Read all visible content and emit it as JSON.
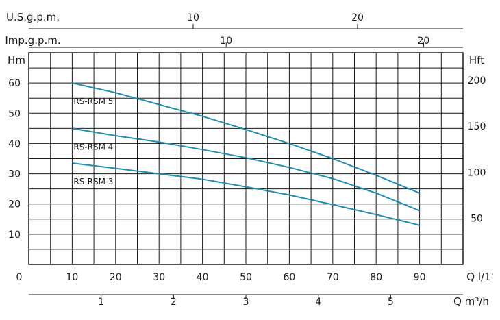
{
  "chart_data": {
    "type": "line",
    "series_color": "#1f8fb0",
    "x": {
      "label": "Q l/1'",
      "ticks": [
        0,
        10,
        20,
        30,
        40,
        50,
        60,
        70,
        80,
        90
      ],
      "lim": [
        0,
        100
      ]
    },
    "y_left": {
      "label": "Hm",
      "ticks": [
        10,
        20,
        30,
        40,
        50,
        60
      ],
      "lim": [
        0,
        70
      ]
    },
    "y_right": {
      "label": "Hft",
      "ticks": [
        50,
        100,
        150,
        200
      ]
    },
    "top_axis_usgpm": {
      "label": "U.S.g.p.m.",
      "ticks": [
        {
          "value": 10,
          "label": "10"
        },
        {
          "value": 20,
          "label": "20"
        }
      ]
    },
    "top_axis_impgpm": {
      "label": "Imp.g.p.m.",
      "ticks": [
        {
          "value": 10,
          "label": "10"
        },
        {
          "value": 20,
          "label": "20"
        }
      ]
    },
    "bottom_axis_m3h": {
      "label": "Q m³/h",
      "ticks": [
        {
          "value": 1,
          "label": "1"
        },
        {
          "value": 2,
          "label": "2"
        },
        {
          "value": 3,
          "label": "3"
        },
        {
          "value": 4,
          "label": "4"
        },
        {
          "value": 5,
          "label": "5"
        }
      ]
    },
    "grid": true,
    "series": [
      {
        "name": "RS-RSM 5",
        "x": [
          10,
          20,
          30,
          40,
          50,
          60,
          70,
          80,
          90
        ],
        "y": [
          60,
          56.8,
          52.9,
          49,
          44.6,
          40,
          35,
          29.5,
          23.6
        ]
      },
      {
        "name": "RS-RSM 4",
        "x": [
          10,
          20,
          30,
          40,
          50,
          60,
          70,
          80,
          90
        ],
        "y": [
          45,
          42.6,
          40.5,
          38,
          35.3,
          32.1,
          28.4,
          23.6,
          17.8
        ]
      },
      {
        "name": "RS-RSM 3",
        "x": [
          10,
          20,
          30,
          40,
          50,
          60,
          70,
          80,
          90
        ],
        "y": [
          33.5,
          31.8,
          30,
          28.2,
          25.7,
          23,
          19.8,
          16.5,
          13
        ]
      }
    ]
  }
}
